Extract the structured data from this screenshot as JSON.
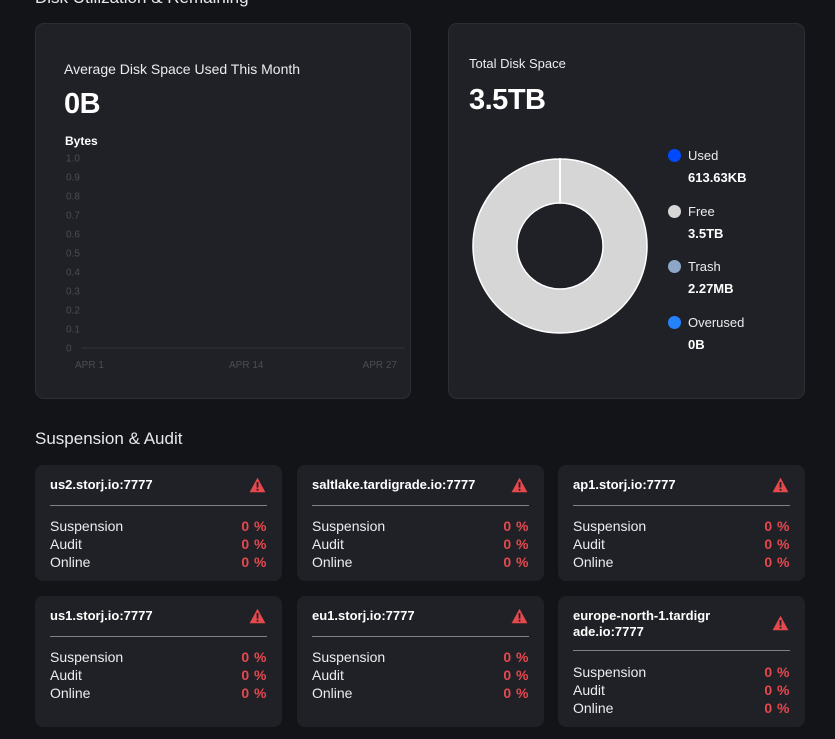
{
  "page": {
    "top_section_title": "Disk Utilization & Remaining",
    "suspension_title": "Suspension & Audit"
  },
  "avg_card": {
    "label": "Average Disk Space Used This Month",
    "value": "0B",
    "y_unit": "Bytes",
    "chart_data": {
      "type": "area",
      "title": "Average Disk Space Used This Month",
      "ylabel": "Bytes",
      "xlabel": "",
      "y_ticks": [
        "1.0",
        "0.9",
        "0.8",
        "0.7",
        "0.6",
        "0.5",
        "0.4",
        "0.3",
        "0.2",
        "0.1",
        "0"
      ],
      "x_ticks": [
        "APR 1",
        "APR 14",
        "APR 27"
      ],
      "ylim": [
        0,
        1
      ],
      "series": [
        {
          "values": [
            0,
            0,
            0
          ]
        }
      ],
      "grid": false
    }
  },
  "total_card": {
    "label": "Total Disk Space",
    "value": "3.5TB",
    "chart_data": {
      "type": "pie",
      "title": "Total Disk Space",
      "slices": [
        {
          "name": "Used",
          "value_text": "613.63KB",
          "fraction": 2e-07,
          "color": "#0149ff"
        },
        {
          "name": "Free",
          "value_text": "3.5TB",
          "fraction": 0.9999991,
          "color": "#d6d6d6"
        },
        {
          "name": "Trash",
          "value_text": "2.27MB",
          "fraction": 7e-07,
          "color": "#8fa7c6"
        },
        {
          "name": "Overused",
          "value_text": "0B",
          "fraction": 0,
          "color": "#2582ff"
        }
      ],
      "legend_position": "right"
    },
    "legend": [
      {
        "name": "Used",
        "value": "613.63KB",
        "color": "#0149ff"
      },
      {
        "name": "Free",
        "value": "3.5TB",
        "color": "#d6d6d6"
      },
      {
        "name": "Trash",
        "value": "2.27MB",
        "color": "#8fa7c6"
      },
      {
        "name": "Overused",
        "value": "0B",
        "color": "#2582ff"
      }
    ]
  },
  "satellites": [
    {
      "name": "us2.storj.io:7777",
      "icon": "warning-icon",
      "rows": [
        {
          "label": "Suspension",
          "value": "0 %"
        },
        {
          "label": "Audit",
          "value": "0 %"
        },
        {
          "label": "Online",
          "value": "0 %"
        }
      ]
    },
    {
      "name": "saltlake.tardigrade.io:7777",
      "icon": "warning-icon",
      "rows": [
        {
          "label": "Suspension",
          "value": "0 %"
        },
        {
          "label": "Audit",
          "value": "0 %"
        },
        {
          "label": "Online",
          "value": "0 %"
        }
      ]
    },
    {
      "name": "ap1.storj.io:7777",
      "icon": "warning-icon",
      "rows": [
        {
          "label": "Suspension",
          "value": "0 %"
        },
        {
          "label": "Audit",
          "value": "0 %"
        },
        {
          "label": "Online",
          "value": "0 %"
        }
      ]
    },
    {
      "name": "us1.storj.io:7777",
      "icon": "warning-icon",
      "rows": [
        {
          "label": "Suspension",
          "value": "0 %"
        },
        {
          "label": "Audit",
          "value": "0 %"
        },
        {
          "label": "Online",
          "value": "0 %"
        }
      ]
    },
    {
      "name": "eu1.storj.io:7777",
      "icon": "warning-icon",
      "rows": [
        {
          "label": "Suspension",
          "value": "0 %"
        },
        {
          "label": "Audit",
          "value": "0 %"
        },
        {
          "label": "Online",
          "value": "0 %"
        }
      ]
    },
    {
      "name": "europe-north-1.tardigrade.io:7777",
      "icon": "warning-icon",
      "rows": [
        {
          "label": "Suspension",
          "value": "0 %"
        },
        {
          "label": "Audit",
          "value": "0 %"
        },
        {
          "label": "Online",
          "value": "0 %"
        }
      ]
    }
  ],
  "colors": {
    "background": "#131418",
    "card": "#202127",
    "warning": "#e5484d",
    "text": "#ffffff"
  }
}
